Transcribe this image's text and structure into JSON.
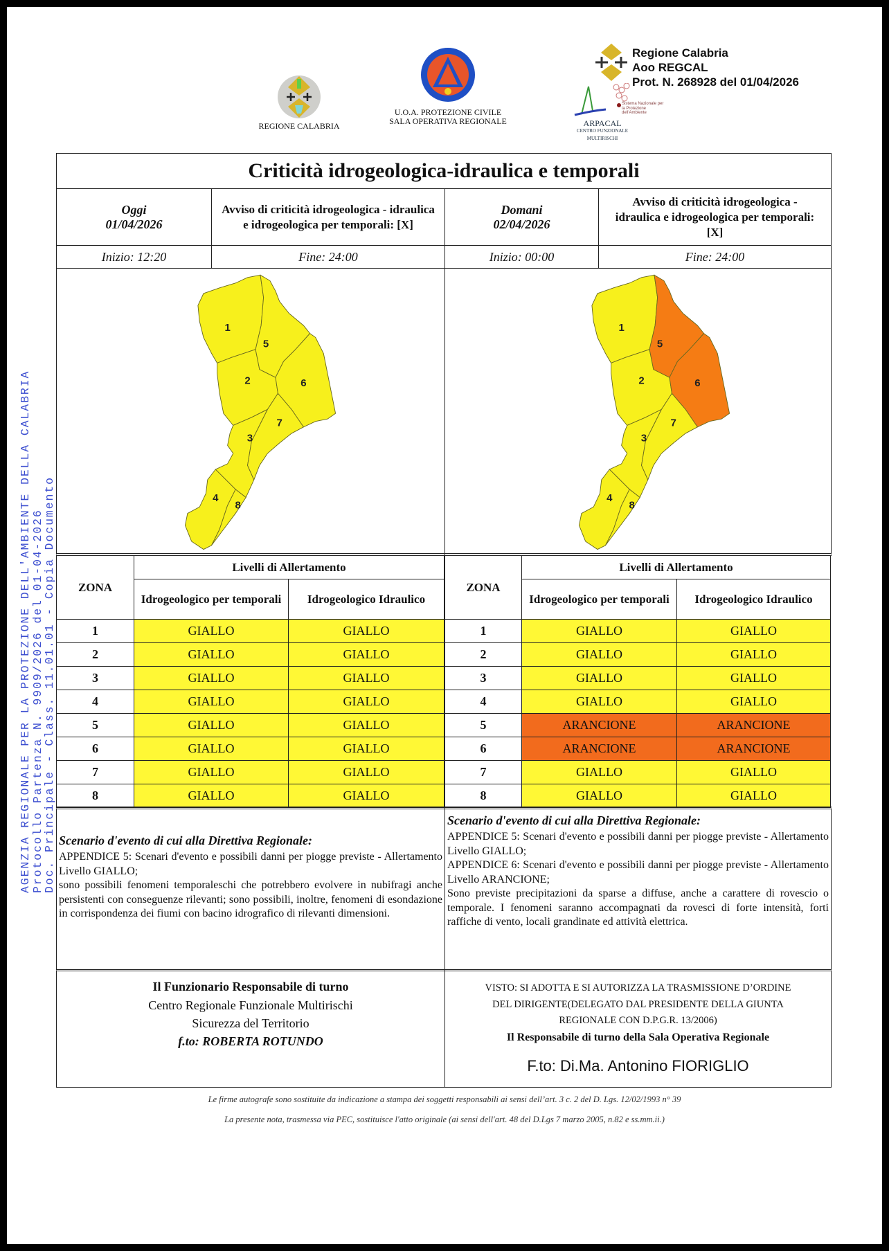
{
  "header": {
    "logo_regione_text": "REGIONE CALABRIA",
    "logo_pc_lettering": [
      "PROTEZIONE CIVILE",
      "Regione Calabria"
    ],
    "pc_line1": "U.O.A. PROTEZIONE CIVILE",
    "pc_line2": "SALA OPERATIVA REGIONALE",
    "arpacal_name": "ARPACAL",
    "arpacal_sub": "CENTRO FUNZIONALE MULTIRISCHI",
    "snpa_lettering": "Sistema Nazionale per la Protezione dell'Ambiente",
    "protocol": [
      "Regione Calabria",
      "Aoo REGCAL",
      "Prot. N. 268928 del 01/04/2026"
    ]
  },
  "side_stamp": [
    "AGENZIA REGIONALE PER LA PROTEZIONE DELL'AMBIENTE DELLA CALABRIA",
    "Protocollo Partenza N. 9909/2026 del 01-04-2026",
    "Doc. Principale - Class. 11.01.01 - Copia Documento"
  ],
  "title": "Criticità idrogeologica-idraulica e temporali",
  "table_headers": {
    "zona": "ZONA",
    "livelli": "Livelli di Allertamento",
    "col_temporali": "Idrogeologico per temporali",
    "col_idraulico": "Idrogeologico Idraulico"
  },
  "level_colors": {
    "GIALLO": "#fff835",
    "ARANCIONE": "#f26b1d"
  },
  "map_colors": {
    "GIALLO": "#f7f01c",
    "ARANCIONE": "#f57c14"
  },
  "days": [
    {
      "label": "Oggi",
      "date": "01/04/2026",
      "notice": "Avviso di criticità idrogeologica - idraulica e idrogeologica per temporali: [X]",
      "start": "Inizio: 12:20",
      "end": "Fine: 24:00",
      "zones": [
        {
          "zona": "1",
          "temporali": "GIALLO",
          "idraulico": "GIALLO"
        },
        {
          "zona": "2",
          "temporali": "GIALLO",
          "idraulico": "GIALLO"
        },
        {
          "zona": "3",
          "temporali": "GIALLO",
          "idraulico": "GIALLO"
        },
        {
          "zona": "4",
          "temporali": "GIALLO",
          "idraulico": "GIALLO"
        },
        {
          "zona": "5",
          "temporali": "GIALLO",
          "idraulico": "GIALLO"
        },
        {
          "zona": "6",
          "temporali": "GIALLO",
          "idraulico": "GIALLO"
        },
        {
          "zona": "7",
          "temporali": "GIALLO",
          "idraulico": "GIALLO"
        },
        {
          "zona": "8",
          "temporali": "GIALLO",
          "idraulico": "GIALLO"
        }
      ],
      "scenario_title": "Scenario d'evento di cui alla Direttiva Regionale:",
      "scenario_lines": [
        "APPENDICE 5: Scenari d'evento e possibili danni per piogge previste - Allertamento Livello GIALLO;",
        "sono possibili fenomeni temporaleschi che potrebbero evolvere in nubifragi anche persistenti con conseguenze rilevanti; sono possibili, inoltre, fenomeni di esondazione in corrispondenza dei fiumi con bacino idrografico di rilevanti dimensioni."
      ]
    },
    {
      "label": "Domani",
      "date": "02/04/2026",
      "notice": "Avviso di criticità idrogeologica - idraulica e idrogeologica per temporali: [X]",
      "start": "Inizio: 00:00",
      "end": "Fine: 24:00",
      "zones": [
        {
          "zona": "1",
          "temporali": "GIALLO",
          "idraulico": "GIALLO"
        },
        {
          "zona": "2",
          "temporali": "GIALLO",
          "idraulico": "GIALLO"
        },
        {
          "zona": "3",
          "temporali": "GIALLO",
          "idraulico": "GIALLO"
        },
        {
          "zona": "4",
          "temporali": "GIALLO",
          "idraulico": "GIALLO"
        },
        {
          "zona": "5",
          "temporali": "ARANCIONE",
          "idraulico": "ARANCIONE"
        },
        {
          "zona": "6",
          "temporali": "ARANCIONE",
          "idraulico": "ARANCIONE"
        },
        {
          "zona": "7",
          "temporali": "GIALLO",
          "idraulico": "GIALLO"
        },
        {
          "zona": "8",
          "temporali": "GIALLO",
          "idraulico": "GIALLO"
        }
      ],
      "scenario_title": "Scenario d'evento di cui alla Direttiva Regionale:",
      "scenario_lines": [
        "APPENDICE 5: Scenari d'evento e possibili danni per piogge previste - Allertamento Livello GIALLO;",
        "APPENDICE 6: Scenari d'evento e possibili danni per piogge previste - Allertamento Livello ARANCIONE;",
        "Sono previste precipitazioni da sparse a diffuse, anche a carattere di rovescio o temporale. I fenomeni saranno accompagnati da rovesci di forte intensità, forti raffiche di vento, locali grandinate ed attività elettrica."
      ]
    }
  ],
  "signatures": {
    "left": {
      "title": "Il Funzionario Responsabile di turno",
      "line1": "Centro Regionale Funzionale Multirischi",
      "line2": "Sicurezza del Territorio",
      "signed": "f.to: ROBERTA ROTUNDO"
    },
    "right": {
      "visto1": "VISTO: SI ADOTTA E SI AUTORIZZA LA TRASMISSIONE D’ORDINE",
      "visto2": "DEL DIRIGENTE(DELEGATO DAL PRESIDENTE DELLA GIUNTA",
      "visto3": "REGIONALE CON D.P.G.R. 13/2006)",
      "title": "Il Responsabile di turno della Sala Operativa Regionale",
      "signed": "F.to:  Di.Ma. Antonino FIORIGLIO"
    }
  },
  "footer": [
    "Le firme autografe sono sostituite da indicazione a stampa dei soggetti responsabili ai sensi dell’art. 3 c. 2 del D. Lgs. 12/02/1993 n° 39",
    "La presente nota, trasmessa via PEC, sostituisce l'atto originale (ai sensi dell'art. 48 del D.Lgs 7 marzo 2005, n.82 e ss.mm.ii.)"
  ]
}
